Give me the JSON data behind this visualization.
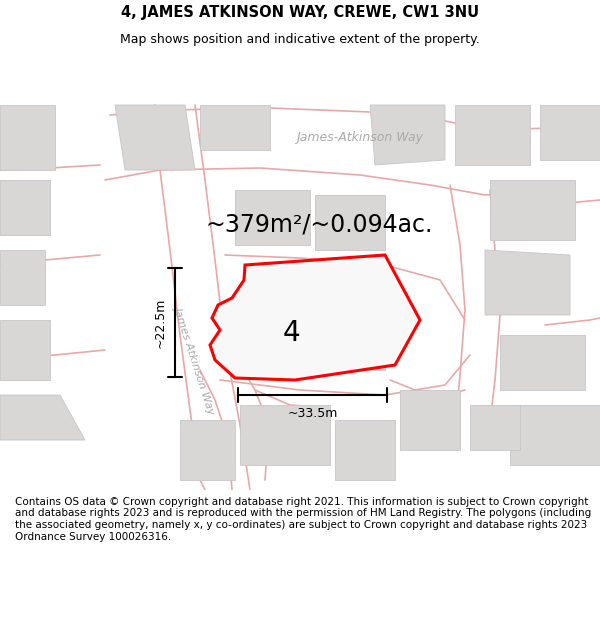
{
  "title": "4, JAMES ATKINSON WAY, CREWE, CW1 3NU",
  "subtitle": "Map shows position and indicative extent of the property.",
  "footer": "Contains OS data © Crown copyright and database right 2021. This information is subject to Crown copyright and database rights 2023 and is reproduced with the permission of HM Land Registry. The polygons (including the associated geometry, namely x, y co-ordinates) are subject to Crown copyright and database rights 2023 Ordnance Survey 100026316.",
  "area_label": "~379m²/~0.094ac.",
  "number_label": "4",
  "dim_h": "~22.5m",
  "dim_w": "~33.5m",
  "road_label_1": "James-Atkinson Way",
  "road_label_2": "James Atkinson Way",
  "map_bg": "#f7f4f4",
  "building_color": "#d9d6d6",
  "building_edge": "#c8c5c5",
  "road_line_color": "#e8a8a8",
  "plot_line_color": "#ff0000",
  "dim_line_color": "#111111",
  "title_fontsize": 10.5,
  "subtitle_fontsize": 9,
  "footer_fontsize": 7.5,
  "area_fontsize": 17,
  "number_fontsize": 20,
  "road_label_color": "#aaaaaa",
  "white": "#ffffff"
}
